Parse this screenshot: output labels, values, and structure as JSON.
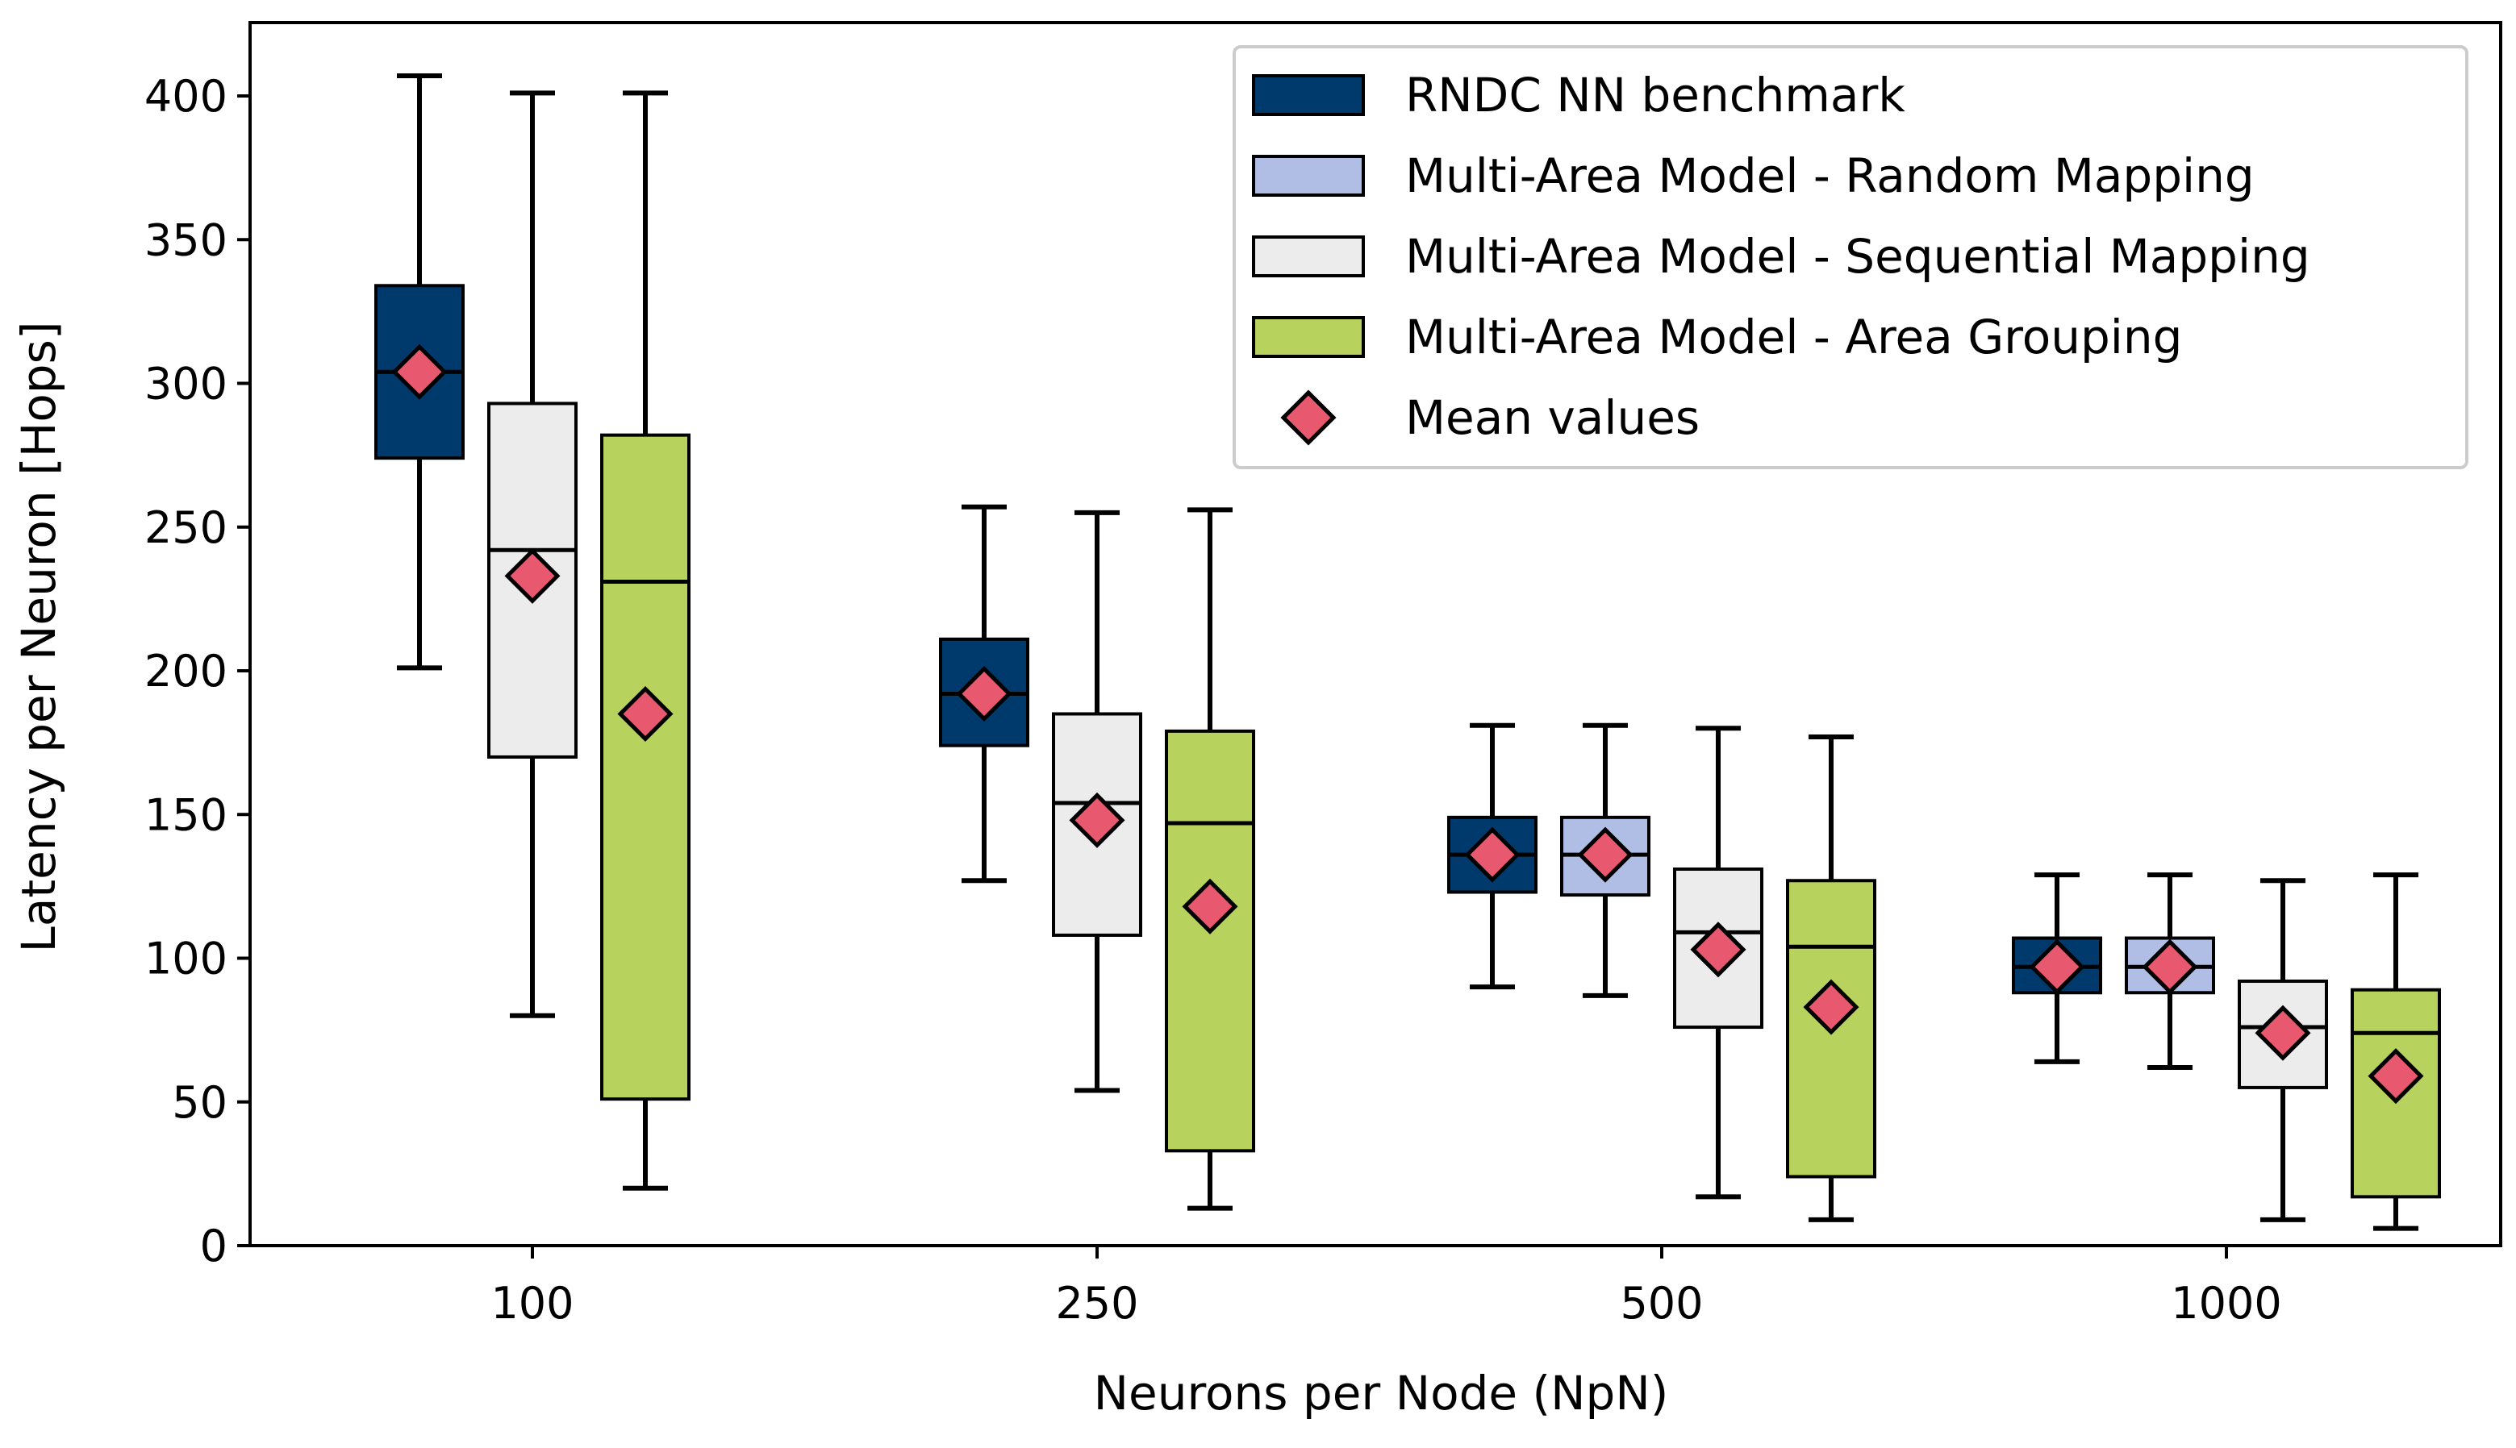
{
  "chart_data": {
    "type": "box",
    "xlabel": "Neurons per Node (NpN)",
    "ylabel": "Latency per Neuron [Hops]",
    "ylim": [
      0,
      420
    ],
    "yticks": [
      0,
      50,
      100,
      150,
      200,
      250,
      300,
      350,
      400
    ],
    "categories": [
      "100",
      "250",
      "500",
      "1000"
    ],
    "grid": false,
    "legend_position": "top-right",
    "series": [
      {
        "name": "RNDC NN benchmark",
        "color": "#003a6c",
        "boxes": [
          {
            "category": "100",
            "whisker_low": 201,
            "q1": 274,
            "median": 304,
            "q3": 334,
            "whisker_high": 407,
            "mean": 304
          },
          {
            "category": "250",
            "whisker_low": 127,
            "q1": 174,
            "median": 192,
            "q3": 211,
            "whisker_high": 257,
            "mean": 192
          },
          {
            "category": "500",
            "whisker_low": 90,
            "q1": 123,
            "median": 136,
            "q3": 149,
            "whisker_high": 181,
            "mean": 136
          },
          {
            "category": "1000",
            "whisker_low": 64,
            "q1": 88,
            "median": 97,
            "q3": 107,
            "whisker_high": 129,
            "mean": 97
          }
        ]
      },
      {
        "name": "Multi-Area Model - Random Mapping",
        "color": "#b0bde4",
        "boxes": [
          {
            "category": "500",
            "whisker_low": 87,
            "q1": 122,
            "median": 136,
            "q3": 149,
            "whisker_high": 181,
            "mean": 136
          },
          {
            "category": "1000",
            "whisker_low": 62,
            "q1": 88,
            "median": 97,
            "q3": 107,
            "whisker_high": 129,
            "mean": 97
          }
        ]
      },
      {
        "name": "Multi-Area Model - Sequential Mapping",
        "color": "#ececec",
        "boxes": [
          {
            "category": "100",
            "whisker_low": 80,
            "q1": 170,
            "median": 242,
            "q3": 293,
            "whisker_high": 401,
            "mean": 233
          },
          {
            "category": "250",
            "whisker_low": 54,
            "q1": 108,
            "median": 154,
            "q3": 185,
            "whisker_high": 255,
            "mean": 148
          },
          {
            "category": "500",
            "whisker_low": 17,
            "q1": 76,
            "median": 109,
            "q3": 131,
            "whisker_high": 180,
            "mean": 103
          },
          {
            "category": "1000",
            "whisker_low": 9,
            "q1": 55,
            "median": 76,
            "q3": 92,
            "whisker_high": 127,
            "mean": 74
          }
        ]
      },
      {
        "name": "Multi-Area Model - Area Grouping",
        "color": "#b8d25e",
        "boxes": [
          {
            "category": "100",
            "whisker_low": 20,
            "q1": 51,
            "median": 231,
            "q3": 282,
            "whisker_high": 401,
            "mean": 185
          },
          {
            "category": "250",
            "whisker_low": 13,
            "q1": 33,
            "median": 147,
            "q3": 179,
            "whisker_high": 256,
            "mean": 118
          },
          {
            "category": "500",
            "whisker_low": 9,
            "q1": 24,
            "median": 104,
            "q3": 127,
            "whisker_high": 177,
            "mean": 83
          },
          {
            "category": "1000",
            "whisker_low": 6,
            "q1": 17,
            "median": 74,
            "q3": 89,
            "whisker_high": 129,
            "mean": 59
          }
        ]
      }
    ],
    "mean_marker": {
      "name": "Mean values",
      "color": "#e8586e",
      "shape": "diamond"
    }
  }
}
